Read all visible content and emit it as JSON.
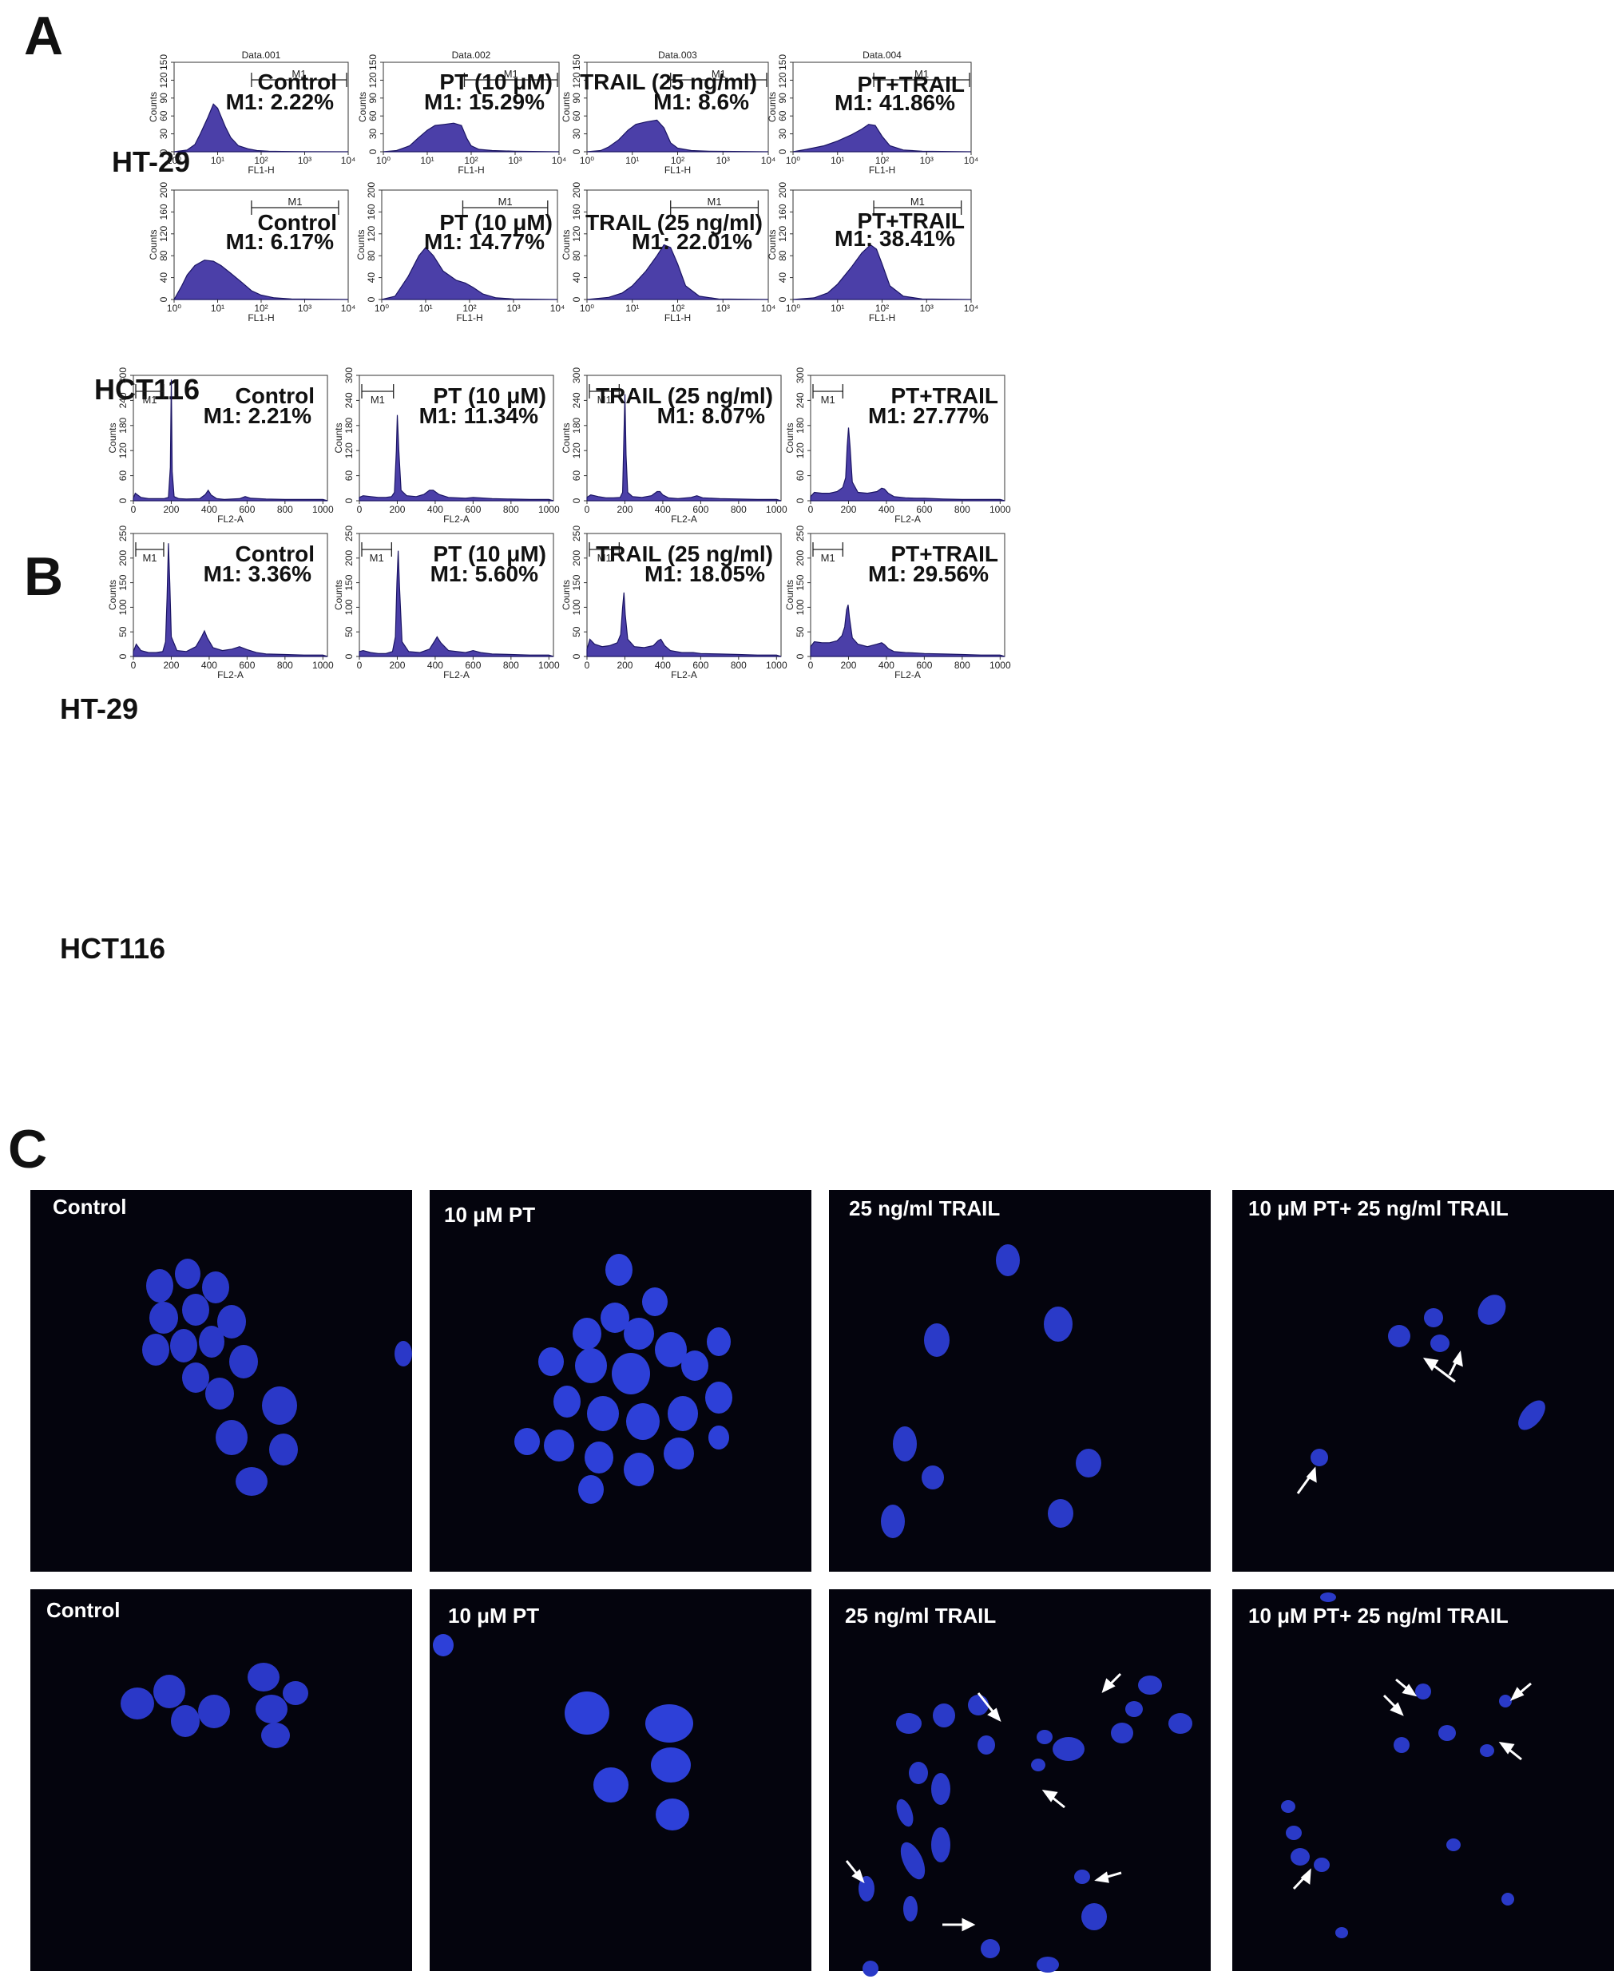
{
  "figure": {
    "panel_letters": [
      "A",
      "B",
      "C"
    ],
    "cell_lines": [
      "HT-29",
      "HCT116"
    ],
    "treatments": [
      "Control",
      "PT (10 μM)",
      "TRAIL (25 ng/ml)",
      "PT+TRAIL"
    ],
    "micro_labels": [
      "Control",
      "10 μM PT",
      "25 ng/ml TRAIL",
      "10 μM PT+ 25 ng/ml TRAIL"
    ],
    "colors": {
      "histogram_fill": "#4b3fa8",
      "histogram_edge": "#1b1564",
      "micrograph_bg": "#04040d",
      "nucleus": "#2d3fd8"
    }
  },
  "chart_data": [
    {
      "panel": "A",
      "row": "HT-29",
      "type": "area",
      "scale": "log",
      "header": "Data.001",
      "xlabel": "FL1-H",
      "ylabel": "Counts",
      "xlim": [
        1,
        10000
      ],
      "xticks": [
        "10⁰",
        "10¹",
        "10²",
        "10³",
        "10⁴"
      ],
      "ylim": [
        0,
        150
      ],
      "yticks": [
        "0",
        "30",
        "60",
        "90",
        "120",
        "150"
      ],
      "gate": {
        "label": "M1",
        "from": 60,
        "to": 10000
      },
      "treatment": "Control",
      "m1": "M1: 2.22%",
      "x": [
        1,
        2,
        3,
        4,
        6,
        8,
        10,
        15,
        20,
        30,
        50,
        80,
        150,
        300,
        1000,
        10000
      ],
      "y": [
        0,
        3,
        12,
        30,
        58,
        80,
        73,
        42,
        24,
        10,
        5,
        2,
        1,
        0.5,
        0.2,
        0
      ]
    },
    {
      "panel": "A",
      "row": "HT-29",
      "type": "area",
      "scale": "log",
      "header": "Data.002",
      "xlabel": "FL1-H",
      "ylabel": "Counts",
      "xlim": [
        1,
        10000
      ],
      "xticks": [
        "10⁰",
        "10¹",
        "10²",
        "10³",
        "10⁴"
      ],
      "ylim": [
        0,
        150
      ],
      "yticks": [
        "0",
        "30",
        "60",
        "90",
        "120",
        "150"
      ],
      "gate": {
        "label": "M1",
        "from": 70,
        "to": 10000
      },
      "treatment": "PT (10 μM)",
      "m1": "M1: 15.29%",
      "x": [
        1,
        2,
        4,
        6,
        10,
        15,
        25,
        40,
        60,
        80,
        100,
        150,
        300,
        1000,
        10000
      ],
      "y": [
        0,
        2,
        10,
        22,
        36,
        44,
        46,
        48,
        44,
        22,
        10,
        4,
        2,
        1,
        0
      ]
    },
    {
      "panel": "A",
      "row": "HT-29",
      "type": "area",
      "scale": "log",
      "header": "Data.003",
      "xlabel": "FL1-H",
      "ylabel": "Counts",
      "xlim": [
        1,
        10000
      ],
      "xticks": [
        "10⁰",
        "10¹",
        "10²",
        "10³",
        "10⁴"
      ],
      "ylim": [
        0,
        150
      ],
      "yticks": [
        "0",
        "30",
        "60",
        "90",
        "120",
        "150"
      ],
      "gate": {
        "label": "M1",
        "from": 70,
        "to": 10000
      },
      "treatment": "TRAIL (25 ng/ml)",
      "m1": "M1: 8.6%",
      "x": [
        1,
        2,
        3,
        5,
        8,
        12,
        20,
        35,
        50,
        70,
        100,
        200,
        500,
        10000
      ],
      "y": [
        0,
        2,
        8,
        20,
        36,
        46,
        50,
        53,
        40,
        15,
        6,
        2,
        1,
        0
      ]
    },
    {
      "panel": "A",
      "row": "HT-29",
      "type": "area",
      "scale": "log",
      "header": "Data.004",
      "xlabel": "FL1-H",
      "ylabel": "Counts",
      "xlim": [
        1,
        10000
      ],
      "xticks": [
        "10⁰",
        "10¹",
        "10²",
        "10³",
        "10⁴"
      ],
      "ylim": [
        0,
        150
      ],
      "yticks": [
        "0",
        "30",
        "60",
        "90",
        "120",
        "150"
      ],
      "gate": {
        "label": "M1",
        "from": 65,
        "to": 10000
      },
      "treatment": "PT+TRAIL",
      "m1": "M1: 41.86%",
      "x": [
        1,
        2,
        5,
        10,
        20,
        35,
        50,
        70,
        100,
        150,
        300,
        800,
        10000
      ],
      "y": [
        0,
        4,
        10,
        18,
        28,
        38,
        46,
        44,
        26,
        10,
        3,
        1,
        0
      ]
    },
    {
      "panel": "A",
      "row": "HCT116",
      "type": "area",
      "scale": "log",
      "xlabel": "FL1-H",
      "ylabel": "Counts",
      "xlim": [
        1,
        10000
      ],
      "xticks": [
        "10⁰",
        "10¹",
        "10²",
        "10³",
        "10⁴"
      ],
      "ylim": [
        0,
        200
      ],
      "yticks": [
        "0",
        "40",
        "80",
        "120",
        "160",
        "200"
      ],
      "gate": {
        "label": "M1",
        "from": 60,
        "to": 6000
      },
      "treatment": "Control",
      "m1": "M1: 6.17%",
      "x": [
        1,
        1.5,
        2,
        3,
        5,
        8,
        12,
        20,
        35,
        60,
        100,
        200,
        500,
        10000
      ],
      "y": [
        0,
        25,
        45,
        62,
        72,
        70,
        62,
        48,
        32,
        16,
        8,
        3,
        1,
        0
      ]
    },
    {
      "panel": "A",
      "row": "HCT116",
      "type": "area",
      "scale": "log",
      "xlabel": "FL1-H",
      "ylabel": "Counts",
      "xlim": [
        1,
        10000
      ],
      "xticks": [
        "10⁰",
        "10¹",
        "10²",
        "10³",
        "10⁴"
      ],
      "ylim": [
        0,
        200
      ],
      "yticks": [
        "0",
        "40",
        "80",
        "120",
        "160",
        "200"
      ],
      "gate": {
        "label": "M1",
        "from": 70,
        "to": 6000
      },
      "treatment": "PT (10 μM)",
      "m1": "M1: 14.77%",
      "x": [
        1,
        2,
        4,
        7,
        10,
        15,
        25,
        50,
        80,
        120,
        200,
        400,
        1000,
        10000
      ],
      "y": [
        0,
        6,
        42,
        80,
        95,
        80,
        52,
        35,
        30,
        22,
        10,
        3,
        1,
        0
      ]
    },
    {
      "panel": "A",
      "row": "HCT116",
      "type": "area",
      "scale": "log",
      "xlabel": "FL1-H",
      "ylabel": "Counts",
      "xlim": [
        1,
        10000
      ],
      "xticks": [
        "10⁰",
        "10¹",
        "10²",
        "10³",
        "10⁴"
      ],
      "ylim": [
        0,
        200
      ],
      "yticks": [
        "0",
        "40",
        "80",
        "120",
        "160",
        "200"
      ],
      "gate": {
        "label": "M1",
        "from": 70,
        "to": 6000
      },
      "treatment": "TRAIL (25 ng/ml)",
      "m1": "M1: 22.01%",
      "x": [
        1,
        3,
        6,
        10,
        20,
        35,
        50,
        70,
        100,
        150,
        300,
        800,
        10000
      ],
      "y": [
        0,
        4,
        12,
        25,
        52,
        80,
        100,
        95,
        65,
        25,
        6,
        1,
        0
      ]
    },
    {
      "panel": "A",
      "row": "HCT116",
      "type": "area",
      "scale": "log",
      "xlabel": "FL1-H",
      "ylabel": "Counts",
      "xlim": [
        1,
        10000
      ],
      "xticks": [
        "10⁰",
        "10¹",
        "10²",
        "10³",
        "10⁴"
      ],
      "ylim": [
        0,
        200
      ],
      "yticks": [
        "0",
        "40",
        "80",
        "120",
        "160",
        "200"
      ],
      "gate": {
        "label": "M1",
        "from": 65,
        "to": 6000
      },
      "treatment": "PT+TRAIL",
      "m1": "M1: 38.41%",
      "x": [
        1,
        3,
        6,
        10,
        20,
        35,
        55,
        75,
        100,
        150,
        300,
        800,
        10000
      ],
      "y": [
        0,
        3,
        12,
        28,
        58,
        85,
        100,
        92,
        65,
        25,
        6,
        1,
        0
      ]
    },
    {
      "panel": "B",
      "row": "HT-29",
      "type": "area",
      "scale": "linear",
      "xlabel": "FL2-A",
      "ylabel": "Counts",
      "xlim": [
        0,
        1024
      ],
      "xticks": [
        "0",
        "200",
        "400",
        "600",
        "800",
        "1000"
      ],
      "ylim": [
        0,
        300
      ],
      "yticks": [
        "0",
        "60",
        "120",
        "180",
        "240",
        "300"
      ],
      "gate": {
        "label": "M1",
        "from": 0,
        "to": 160
      },
      "treatment": "Control",
      "m1": "M1: 2.21%",
      "x": [
        0,
        10,
        40,
        80,
        120,
        160,
        185,
        195,
        200,
        205,
        215,
        240,
        280,
        350,
        380,
        395,
        410,
        440,
        480,
        560,
        590,
        620,
        700,
        800,
        900,
        1000,
        1024
      ],
      "y": [
        6,
        18,
        8,
        5,
        5,
        5,
        8,
        80,
        290,
        70,
        10,
        5,
        4,
        5,
        15,
        25,
        14,
        5,
        3,
        5,
        10,
        6,
        4,
        3,
        3,
        3,
        0
      ]
    },
    {
      "panel": "B",
      "row": "HT-29",
      "type": "area",
      "scale": "linear",
      "xlabel": "FL2-A",
      "ylabel": "Counts",
      "xlim": [
        0,
        1024
      ],
      "xticks": [
        "0",
        "200",
        "400",
        "600",
        "800",
        "1000"
      ],
      "ylim": [
        0,
        300
      ],
      "yticks": [
        "0",
        "60",
        "120",
        "180",
        "240",
        "300"
      ],
      "gate": {
        "label": "M1",
        "from": 0,
        "to": 180
      },
      "treatment": "PT (10 μM)",
      "m1": "M1: 11.34%",
      "x": [
        0,
        20,
        60,
        100,
        140,
        170,
        185,
        195,
        200,
        208,
        220,
        250,
        300,
        340,
        370,
        390,
        420,
        470,
        560,
        600,
        700,
        800,
        900,
        1000,
        1024
      ],
      "y": [
        8,
        12,
        10,
        8,
        8,
        10,
        20,
        120,
        205,
        120,
        25,
        12,
        10,
        15,
        25,
        25,
        15,
        8,
        6,
        8,
        5,
        4,
        3,
        3,
        0
      ]
    },
    {
      "panel": "B",
      "row": "HT-29",
      "type": "area",
      "scale": "linear",
      "xlabel": "FL2-A",
      "ylabel": "Counts",
      "xlim": [
        0,
        1024
      ],
      "xticks": [
        "0",
        "200",
        "400",
        "600",
        "800",
        "1000"
      ],
      "ylim": [
        0,
        300
      ],
      "yticks": [
        "0",
        "60",
        "120",
        "180",
        "240",
        "300"
      ],
      "gate": {
        "label": "M1",
        "from": 0,
        "to": 170
      },
      "treatment": "TRAIL (25 ng/ml)",
      "m1": "M1: 8.07%",
      "x": [
        0,
        20,
        60,
        100,
        140,
        175,
        188,
        195,
        200,
        206,
        215,
        240,
        290,
        340,
        370,
        385,
        400,
        430,
        480,
        550,
        580,
        610,
        700,
        800,
        900,
        1000,
        1024
      ],
      "y": [
        8,
        14,
        10,
        7,
        7,
        8,
        20,
        160,
        255,
        110,
        20,
        10,
        8,
        12,
        22,
        22,
        14,
        7,
        5,
        8,
        12,
        7,
        5,
        4,
        3,
        3,
        0
      ]
    },
    {
      "panel": "B",
      "row": "HT-29",
      "type": "area",
      "scale": "linear",
      "xlabel": "FL2-A",
      "ylabel": "Counts",
      "xlim": [
        0,
        1024
      ],
      "xticks": [
        "0",
        "200",
        "400",
        "600",
        "800",
        "1000"
      ],
      "ylim": [
        0,
        300
      ],
      "yticks": [
        "0",
        "60",
        "120",
        "180",
        "240",
        "300"
      ],
      "gate": {
        "label": "M1",
        "from": 0,
        "to": 170
      },
      "treatment": "PT+TRAIL",
      "m1": "M1: 27.77%",
      "x": [
        0,
        20,
        60,
        100,
        140,
        170,
        185,
        193,
        200,
        208,
        220,
        250,
        300,
        350,
        375,
        390,
        410,
        440,
        500,
        560,
        600,
        700,
        800,
        900,
        1000,
        1024
      ],
      "y": [
        10,
        20,
        18,
        18,
        22,
        32,
        55,
        130,
        175,
        130,
        45,
        20,
        18,
        22,
        30,
        28,
        18,
        10,
        7,
        6,
        6,
        4,
        3,
        3,
        3,
        0
      ]
    },
    {
      "panel": "B",
      "row": "HCT116",
      "type": "area",
      "scale": "linear",
      "xlabel": "FL2-A",
      "ylabel": "Counts",
      "xlim": [
        0,
        1024
      ],
      "xticks": [
        "0",
        "200",
        "400",
        "600",
        "800",
        "1000"
      ],
      "ylim": [
        0,
        250
      ],
      "yticks": [
        "0",
        "50",
        "100",
        "150",
        "200",
        "250"
      ],
      "gate": {
        "label": "M1",
        "from": 0,
        "to": 160
      },
      "treatment": "Control",
      "m1": "M1: 3.36%",
      "x": [
        0,
        15,
        40,
        80,
        120,
        155,
        170,
        178,
        185,
        192,
        200,
        230,
        280,
        330,
        360,
        375,
        390,
        420,
        470,
        520,
        560,
        600,
        650,
        700,
        800,
        900,
        1000,
        1024
      ],
      "y": [
        10,
        25,
        12,
        8,
        8,
        10,
        30,
        120,
        230,
        150,
        40,
        12,
        10,
        20,
        40,
        52,
        38,
        18,
        12,
        15,
        20,
        14,
        8,
        5,
        4,
        3,
        3,
        0
      ]
    },
    {
      "panel": "B",
      "row": "HCT116",
      "type": "area",
      "scale": "linear",
      "xlabel": "FL2-A",
      "ylabel": "Counts",
      "xlim": [
        0,
        1024
      ],
      "xticks": [
        "0",
        "200",
        "400",
        "600",
        "800",
        "1000"
      ],
      "ylim": [
        0,
        250
      ],
      "yticks": [
        "0",
        "50",
        "100",
        "150",
        "200",
        "250"
      ],
      "gate": {
        "label": "M1",
        "from": 0,
        "to": 170
      },
      "treatment": "PT (10 μM)",
      "m1": "M1: 5.60%",
      "x": [
        0,
        20,
        60,
        100,
        140,
        175,
        190,
        198,
        205,
        212,
        225,
        260,
        320,
        370,
        395,
        410,
        430,
        470,
        560,
        600,
        640,
        700,
        800,
        900,
        1000,
        1024
      ],
      "y": [
        10,
        12,
        8,
        6,
        6,
        10,
        40,
        150,
        215,
        140,
        30,
        10,
        8,
        15,
        30,
        40,
        28,
        12,
        8,
        12,
        8,
        5,
        4,
        3,
        3,
        0
      ]
    },
    {
      "panel": "B",
      "row": "HCT116",
      "type": "area",
      "scale": "linear",
      "xlabel": "FL2-A",
      "ylabel": "Counts",
      "xlim": [
        0,
        1024
      ],
      "xticks": [
        "0",
        "200",
        "400",
        "600",
        "800",
        "1000"
      ],
      "ylim": [
        0,
        250
      ],
      "yticks": [
        "0",
        "50",
        "100",
        "150",
        "200",
        "250"
      ],
      "gate": {
        "label": "M1",
        "from": 0,
        "to": 170
      },
      "treatment": "TRAIL (25 ng/ml)",
      "m1": "M1: 18.05%",
      "x": [
        0,
        15,
        40,
        80,
        120,
        160,
        178,
        188,
        195,
        202,
        215,
        250,
        300,
        350,
        375,
        390,
        410,
        440,
        500,
        560,
        600,
        700,
        800,
        900,
        1000,
        1024
      ],
      "y": [
        15,
        35,
        25,
        20,
        22,
        28,
        45,
        100,
        130,
        85,
        35,
        20,
        18,
        22,
        32,
        35,
        22,
        12,
        8,
        8,
        6,
        5,
        4,
        3,
        3,
        0
      ]
    },
    {
      "panel": "B",
      "row": "HCT116",
      "type": "area",
      "scale": "linear",
      "xlabel": "FL2-A",
      "ylabel": "Counts",
      "xlim": [
        0,
        1024
      ],
      "xticks": [
        "0",
        "200",
        "400",
        "600",
        "800",
        "1000"
      ],
      "ylim": [
        0,
        250
      ],
      "yticks": [
        "0",
        "50",
        "100",
        "150",
        "200",
        "250"
      ],
      "gate": {
        "label": "M1",
        "from": 0,
        "to": 170
      },
      "treatment": "PT+TRAIL",
      "m1": "M1: 29.56%",
      "x": [
        0,
        20,
        60,
        100,
        140,
        165,
        180,
        190,
        198,
        205,
        220,
        250,
        300,
        350,
        375,
        390,
        410,
        440,
        500,
        560,
        600,
        700,
        800,
        900,
        1000,
        1024
      ],
      "y": [
        20,
        30,
        28,
        28,
        32,
        42,
        60,
        95,
        105,
        80,
        38,
        25,
        20,
        25,
        28,
        24,
        16,
        10,
        8,
        7,
        6,
        5,
        4,
        3,
        3,
        0
      ]
    }
  ]
}
